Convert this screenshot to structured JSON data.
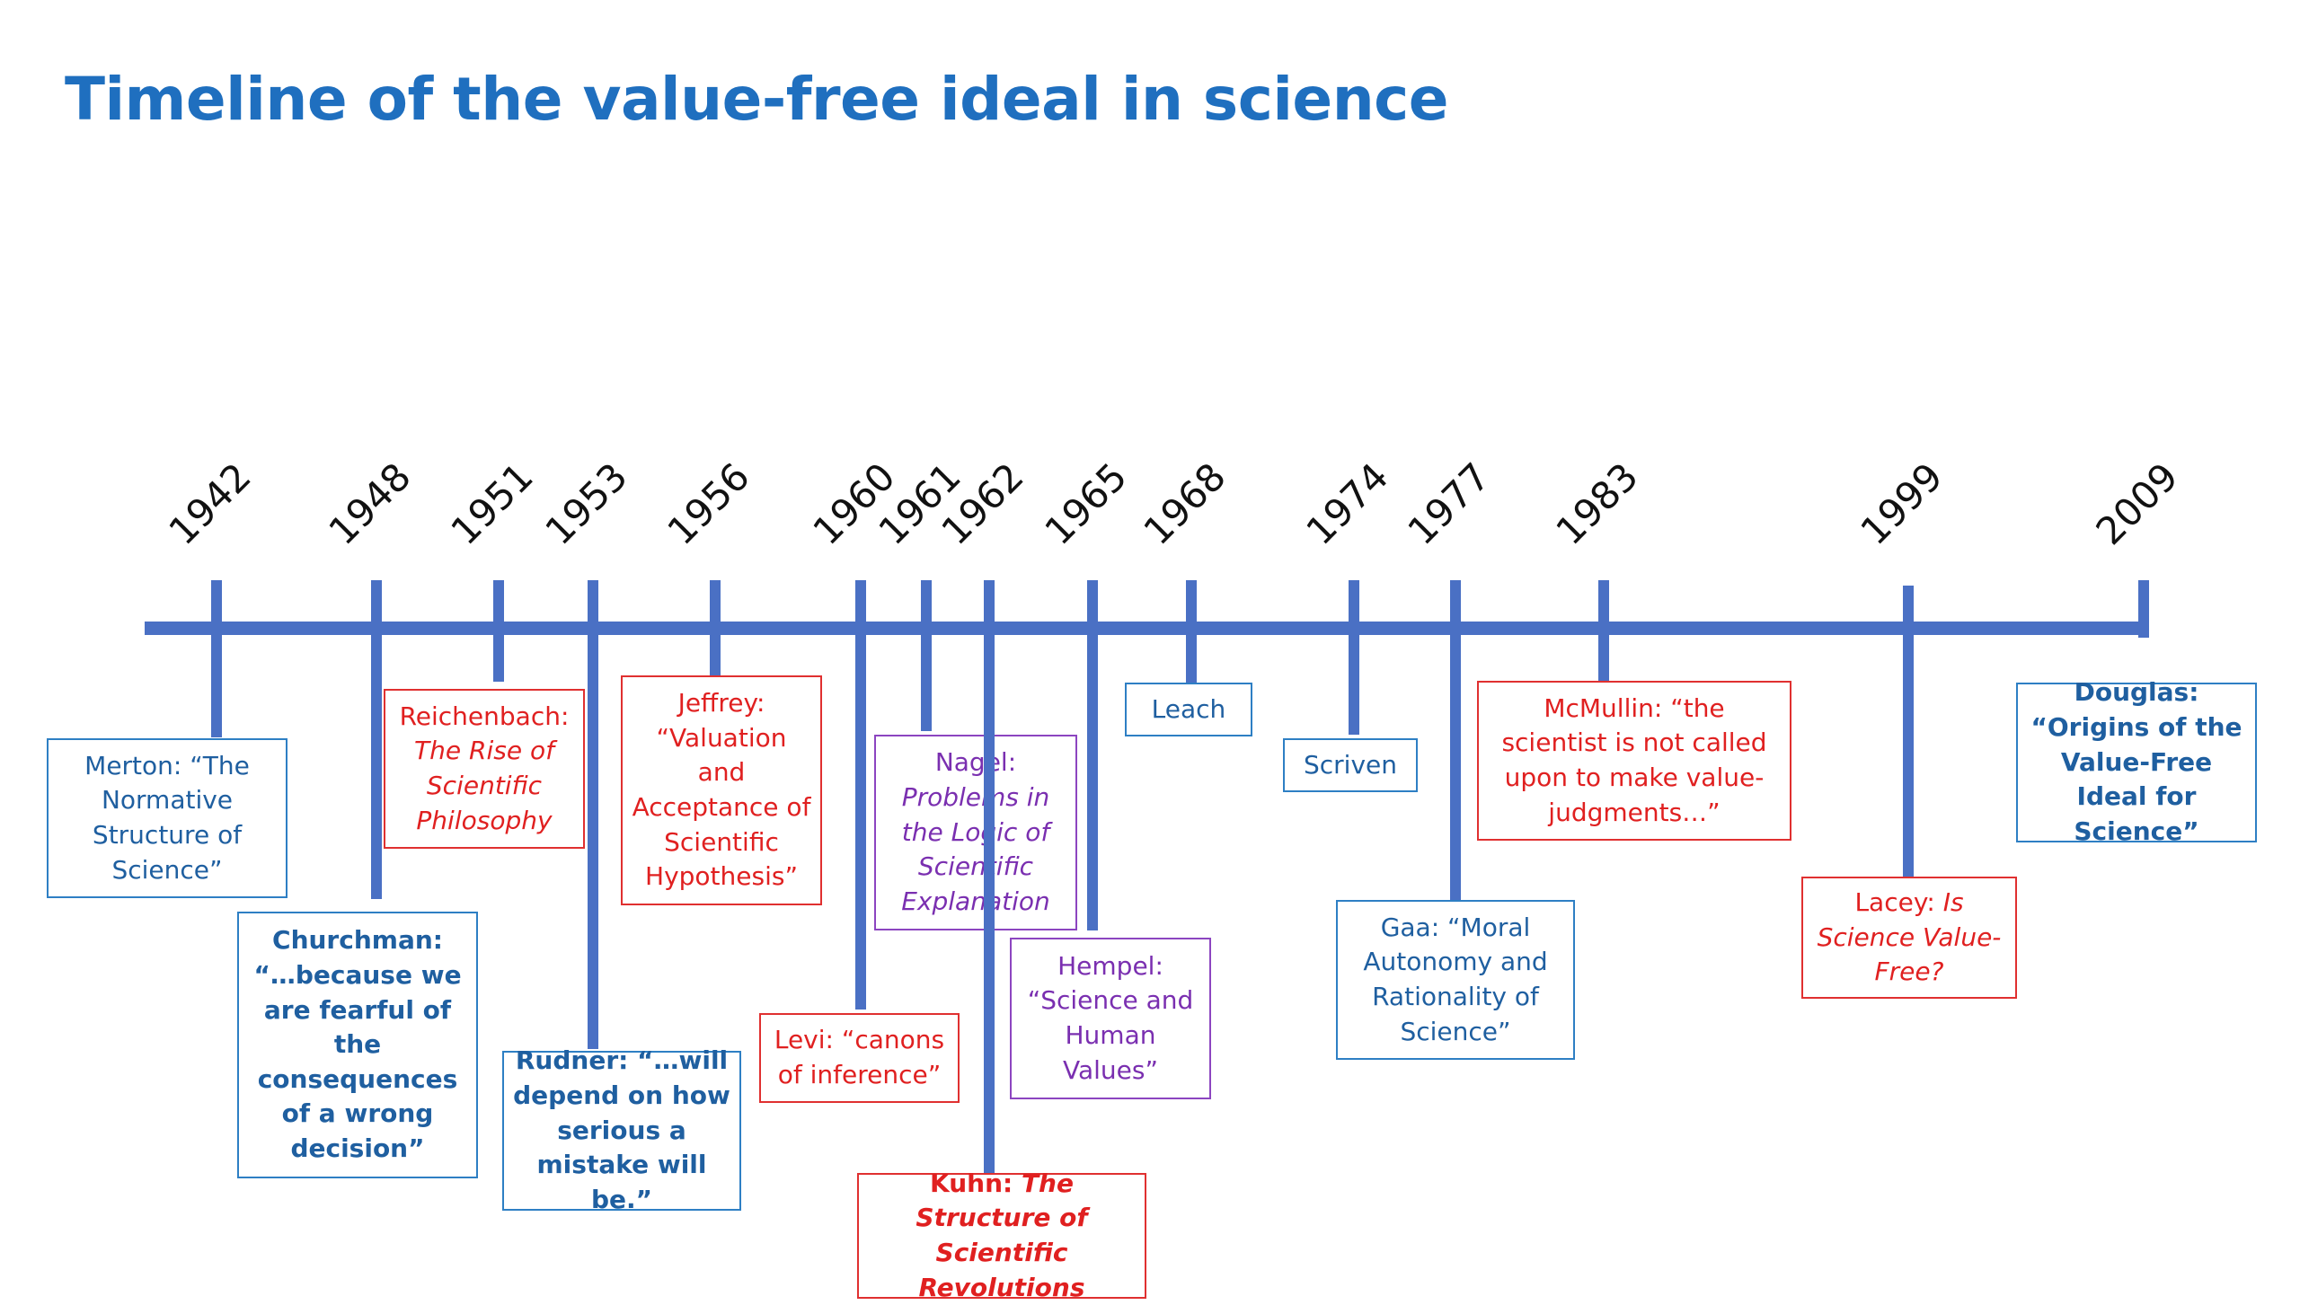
{
  "title": "Timeline of the value-free ideal in science",
  "colors": {
    "axis": "#4a70c4",
    "title": "#1f6fbf",
    "blue": "#2e7fc4",
    "red": "#e03030",
    "purple": "#8c45c0"
  },
  "years": [
    "1942",
    "1948",
    "1951",
    "1953",
    "1956",
    "1960",
    "1961",
    "1962",
    "1965",
    "1968",
    "1974",
    "1977",
    "1983",
    "1999",
    "2009"
  ],
  "events": [
    {
      "year": "1942",
      "color": "blue",
      "parts": [
        {
          "t": "Merton: “The Normative Structure of Science”"
        }
      ]
    },
    {
      "year": "1948",
      "color": "blue",
      "parts": [
        {
          "t": "Churchman: “…because we are fearful of the consequences of a wrong decision”",
          "b": true
        }
      ]
    },
    {
      "year": "1951",
      "color": "red",
      "parts": [
        {
          "t": "Reichenbach: "
        },
        {
          "t": "The Rise of Scientific Philosophy",
          "i": true
        }
      ]
    },
    {
      "year": "1953",
      "color": "blue",
      "parts": [
        {
          "t": "Rudner: “…will depend on how serious a mistake will be.”",
          "b": true
        }
      ]
    },
    {
      "year": "1956",
      "color": "red",
      "parts": [
        {
          "t": "Jeffrey: “Valuation and Acceptance of Scientific Hypothesis”"
        }
      ]
    },
    {
      "year": "1960",
      "color": "red",
      "parts": [
        {
          "t": "Levi: “canons of inference”"
        }
      ]
    },
    {
      "year": "1961",
      "color": "purple",
      "parts": [
        {
          "t": "Nagel: "
        },
        {
          "t": "Problems in the Logic of Scientific Explanation",
          "i": true
        }
      ]
    },
    {
      "year": "1962",
      "color": "red",
      "parts": [
        {
          "t": "Kuhn: ",
          "b": true
        },
        {
          "t": "The Structure of Scientific Revolutions",
          "b": true,
          "i": true
        }
      ]
    },
    {
      "year": "1965",
      "color": "purple",
      "parts": [
        {
          "t": "Hempel: “Science and Human Values”"
        }
      ]
    },
    {
      "year": "1968",
      "color": "blue",
      "parts": [
        {
          "t": "Leach"
        }
      ]
    },
    {
      "year": "1974",
      "color": "blue",
      "parts": [
        {
          "t": "Scriven"
        }
      ]
    },
    {
      "year": "1977",
      "color": "blue",
      "parts": [
        {
          "t": "Gaa: “Moral Autonomy and Rationality of Science”"
        }
      ]
    },
    {
      "year": "1983",
      "color": "red",
      "parts": [
        {
          "t": "McMullin: “the scientist is not called upon to make value-judgments…”"
        }
      ]
    },
    {
      "year": "1999",
      "color": "red",
      "parts": [
        {
          "t": "Lacey: "
        },
        {
          "t": "Is Science Value-Free?",
          "i": true
        }
      ]
    },
    {
      "year": "2009",
      "color": "blue",
      "parts": [
        {
          "t": "Douglas: “Origins of the Value-Free Ideal for Science”",
          "b": true
        }
      ]
    }
  ]
}
